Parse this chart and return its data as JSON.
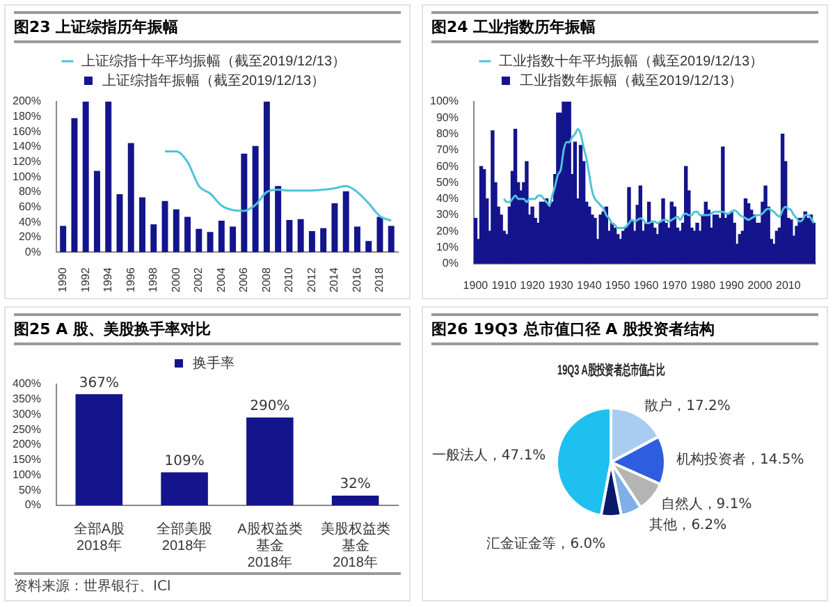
{
  "chart_data": [
    {
      "type": "bar",
      "title": "图23 上证综指历年振幅",
      "legend": "top",
      "grid": false,
      "xlim": [
        1989.4,
        2019.6
      ],
      "xticks": [
        1990,
        1992,
        1994,
        1996,
        1998,
        2000,
        2002,
        2004,
        2006,
        2008,
        2010,
        2012,
        2014,
        2016,
        2018
      ],
      "ylim": [
        0,
        200
      ],
      "yticks": [
        {
          "value": 0,
          "label": "0%"
        },
        {
          "value": 20,
          "label": "20%"
        },
        {
          "value": 40,
          "label": "40%"
        },
        {
          "value": 60,
          "label": "60%"
        },
        {
          "value": 80,
          "label": "80%"
        },
        {
          "value": 100,
          "label": "100%"
        },
        {
          "value": 120,
          "label": "120%"
        },
        {
          "value": 140,
          "label": "140%"
        },
        {
          "value": 160,
          "label": "160%"
        },
        {
          "value": 180,
          "label": "180%"
        },
        {
          "value": 200,
          "label": "200%"
        }
      ],
      "series": [
        {
          "name": "上证综指年振幅（截至2019/12/13）",
          "type": "bar",
          "color": "#14148c",
          "x": [
            1990,
            1991,
            1992,
            1993,
            1994,
            1995,
            1996,
            1997,
            1998,
            1999,
            2000,
            2001,
            2002,
            2003,
            2004,
            2005,
            2006,
            2007,
            2008,
            2009,
            2010,
            2011,
            2012,
            2013,
            2014,
            2015,
            2016,
            2017,
            2018,
            2019
          ],
          "values": [
            35,
            178,
            200,
            108,
            200,
            77,
            145,
            73,
            37,
            68,
            57,
            47,
            31,
            27,
            42,
            34,
            131,
            141,
            200,
            88,
            43,
            44,
            28,
            32,
            65,
            81,
            34,
            15,
            47,
            35
          ]
        },
        {
          "name": "上证综指十年平均振幅（截至2019/12/13）",
          "type": "line",
          "color": "#4fc3d9",
          "x": [
            1999,
            2000,
            2001,
            2002,
            2003,
            2004,
            2005,
            2006,
            2007,
            2008,
            2009,
            2010,
            2011,
            2012,
            2013,
            2014,
            2015,
            2016,
            2017,
            2018,
            2019
          ],
          "values": [
            134,
            134,
            120,
            88,
            78,
            62,
            56,
            55,
            63,
            80,
            83,
            82,
            82,
            82,
            83,
            85,
            88,
            80,
            65,
            48,
            42
          ]
        }
      ]
    },
    {
      "type": "bar",
      "title": "图24 工业指数历年振幅",
      "legend": "top",
      "grid": false,
      "xlim": [
        1899.4,
        2019.6
      ],
      "xticks": [
        1900,
        1910,
        1920,
        1930,
        1940,
        1950,
        1960,
        1970,
        1980,
        1990,
        2000,
        2010
      ],
      "ylim": [
        0,
        100
      ],
      "yticks": [
        {
          "value": 0,
          "label": "0%"
        },
        {
          "value": 10,
          "label": "10%"
        },
        {
          "value": 20,
          "label": "20%"
        },
        {
          "value": 30,
          "label": "30%"
        },
        {
          "value": 40,
          "label": "40%"
        },
        {
          "value": 50,
          "label": "50%"
        },
        {
          "value": 60,
          "label": "60%"
        },
        {
          "value": 70,
          "label": "70%"
        },
        {
          "value": 80,
          "label": "80%"
        },
        {
          "value": 90,
          "label": "90%"
        },
        {
          "value": 100,
          "label": "100%"
        }
      ],
      "series": [
        {
          "name": "工业指数年振幅（截至2019/12/13）",
          "type": "bar",
          "color": "#14148c",
          "x": [
            1900,
            1901,
            1902,
            1903,
            1904,
            1905,
            1906,
            1907,
            1908,
            1909,
            1910,
            1911,
            1912,
            1913,
            1914,
            1915,
            1916,
            1917,
            1918,
            1919,
            1920,
            1921,
            1922,
            1923,
            1924,
            1925,
            1926,
            1927,
            1928,
            1929,
            1930,
            1931,
            1932,
            1933,
            1934,
            1935,
            1936,
            1937,
            1938,
            1939,
            1940,
            1941,
            1942,
            1943,
            1944,
            1945,
            1946,
            1947,
            1948,
            1949,
            1950,
            1951,
            1952,
            1953,
            1954,
            1955,
            1956,
            1957,
            1958,
            1959,
            1960,
            1961,
            1962,
            1963,
            1964,
            1965,
            1966,
            1967,
            1968,
            1969,
            1970,
            1971,
            1972,
            1973,
            1974,
            1975,
            1976,
            1977,
            1978,
            1979,
            1980,
            1981,
            1982,
            1983,
            1984,
            1985,
            1986,
            1987,
            1988,
            1989,
            1990,
            1991,
            1992,
            1993,
            1994,
            1995,
            1996,
            1997,
            1998,
            1999,
            2000,
            2001,
            2002,
            2003,
            2004,
            2005,
            2006,
            2007,
            2008,
            2009,
            2010,
            2011,
            2012,
            2013,
            2014,
            2015,
            2016,
            2017,
            2018,
            2019
          ],
          "values": [
            28,
            15,
            60,
            58,
            40,
            20,
            82,
            50,
            35,
            30,
            20,
            18,
            35,
            57,
            83,
            50,
            45,
            50,
            63,
            30,
            35,
            28,
            25,
            38,
            38,
            40,
            35,
            38,
            55,
            93,
            93,
            100,
            100,
            100,
            55,
            75,
            40,
            73,
            63,
            38,
            35,
            30,
            28,
            15,
            30,
            32,
            35,
            20,
            25,
            22,
            18,
            15,
            20,
            22,
            47,
            27,
            20,
            36,
            48,
            20,
            25,
            38,
            25,
            22,
            18,
            25,
            40,
            25,
            22,
            38,
            35,
            22,
            20,
            25,
            60,
            45,
            22,
            20,
            25,
            20,
            30,
            38,
            33,
            22,
            30,
            30,
            28,
            72,
            28,
            30,
            32,
            25,
            12,
            18,
            20,
            40,
            37,
            33,
            30,
            25,
            25,
            38,
            48,
            35,
            15,
            12,
            20,
            22,
            80,
            63,
            28,
            27,
            17,
            23,
            28,
            28,
            32,
            28,
            30,
            25
          ]
        },
        {
          "name": "工业指数十年平均振幅（截至2019/12/13）",
          "type": "line",
          "color": "#4fc3d9",
          "x": [
            1910,
            1911,
            1912,
            1913,
            1914,
            1915,
            1916,
            1917,
            1918,
            1919,
            1920,
            1921,
            1922,
            1923,
            1924,
            1925,
            1926,
            1927,
            1928,
            1929,
            1930,
            1931,
            1932,
            1933,
            1934,
            1935,
            1936,
            1937,
            1938,
            1939,
            1940,
            1941,
            1942,
            1943,
            1944,
            1945,
            1946,
            1947,
            1948,
            1949,
            1950,
            1951,
            1952,
            1953,
            1954,
            1955,
            1956,
            1957,
            1958,
            1959,
            1960,
            1961,
            1962,
            1963,
            1964,
            1965,
            1966,
            1967,
            1968,
            1969,
            1970,
            1971,
            1972,
            1973,
            1974,
            1975,
            1976,
            1977,
            1978,
            1979,
            1980,
            1981,
            1982,
            1983,
            1984,
            1985,
            1986,
            1987,
            1988,
            1989,
            1990,
            1991,
            1992,
            1993,
            1994,
            1995,
            1996,
            1997,
            1998,
            1999,
            2000,
            2001,
            2002,
            2003,
            2004,
            2005,
            2006,
            2007,
            2008,
            2009,
            2010,
            2011,
            2012,
            2013,
            2014,
            2015,
            2016,
            2017,
            2018,
            2019
          ],
          "values": [
            40,
            38,
            38,
            40,
            42,
            40,
            40,
            40,
            38,
            40,
            40,
            40,
            42,
            42,
            40,
            38,
            36,
            42,
            48,
            55,
            58,
            70,
            75,
            75,
            78,
            80,
            83,
            80,
            72,
            65,
            55,
            45,
            40,
            38,
            36,
            34,
            30,
            28,
            25,
            24,
            22,
            22,
            22,
            23,
            25,
            27,
            26,
            27,
            28,
            27,
            25,
            25,
            26,
            26,
            25,
            26,
            27,
            27,
            26,
            27,
            28,
            29,
            27,
            30,
            31,
            30,
            30,
            32,
            32,
            30,
            30,
            30,
            30,
            31,
            32,
            32,
            32,
            32,
            31,
            31,
            32,
            33,
            32,
            30,
            29,
            28,
            27,
            28,
            29,
            30,
            30,
            31,
            33,
            34,
            33,
            32,
            30,
            29,
            33,
            35,
            34,
            33,
            30,
            28,
            26,
            27,
            30,
            30,
            28,
            25
          ]
        }
      ]
    },
    {
      "type": "bar",
      "title": "图25 A 股、美股换手率对比",
      "legend": "top",
      "grid": false,
      "categories": [
        "全部A股\n2018年",
        "全部美股\n2018年",
        "A股权益类基金\n2018年",
        "美股权益类基金\n2018年"
      ],
      "ylim": [
        0,
        400
      ],
      "yticks": [
        {
          "value": 0,
          "label": "0%"
        },
        {
          "value": 50,
          "label": "50%"
        },
        {
          "value": 100,
          "label": "100%"
        },
        {
          "value": 150,
          "label": "150%"
        },
        {
          "value": 200,
          "label": "200%"
        },
        {
          "value": 250,
          "label": "250%"
        },
        {
          "value": 300,
          "label": "300%"
        },
        {
          "value": 350,
          "label": "350%"
        },
        {
          "value": 400,
          "label": "400%"
        }
      ],
      "series": [
        {
          "name": "换手率",
          "color": "#14148c",
          "values": [
            367,
            109,
            290,
            32
          ],
          "value_labels": [
            "367%",
            "109%",
            "290%",
            "32%"
          ]
        }
      ],
      "annotations": [
        "资料来源：世界银行、ICI"
      ]
    },
    {
      "type": "pie",
      "title": "图26 19Q3 总市值口径 A 股投资者结构",
      "subtitle": "19Q3 A股投资者总市值占比",
      "legend": false,
      "categories": [
        "散户",
        "机构投资者",
        "自然人",
        "其他",
        "汇金证金等",
        "一般法人"
      ],
      "values": [
        17.2,
        14.5,
        9.1,
        6.2,
        6.0,
        47.1
      ],
      "value_labels": [
        "17.2%",
        "14.5%",
        "9.1%",
        "6.2%",
        "6.0%",
        "47.1%"
      ],
      "colors": [
        "#a9cdf0",
        "#2f5de0",
        "#b4b4b4",
        "#80aee6",
        "#0a1a6b",
        "#1ec0ef"
      ]
    }
  ]
}
